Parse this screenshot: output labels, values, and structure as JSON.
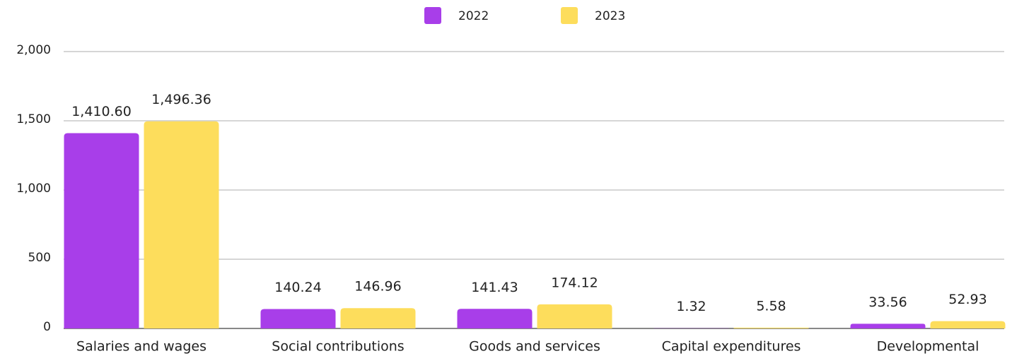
{
  "chart_data": {
    "type": "bar",
    "categories": [
      "Salaries and wages",
      "Social contributions",
      "Goods and services",
      "Capital expenditures",
      "Developmental"
    ],
    "series": [
      {
        "name": "2022",
        "color": "#a83ee9",
        "values": [
          1410.6,
          140.24,
          141.43,
          1.32,
          33.56
        ],
        "value_labels": [
          "1,410.60",
          "140.24",
          "141.43",
          "1.32",
          "33.56"
        ]
      },
      {
        "name": "2023",
        "color": "#fddd5c",
        "values": [
          1496.36,
          146.96,
          174.12,
          5.58,
          52.93
        ],
        "value_labels": [
          "1,496.36",
          "146.96",
          "174.12",
          "5.58",
          "52.93"
        ]
      }
    ],
    "ylim": [
      0,
      2000
    ],
    "yticks": [
      0,
      500,
      {
        "value": 1000,
        "label": "1,000"
      },
      {
        "value": 1500,
        "label": "1,500"
      },
      {
        "value": 2000,
        "label": "2,000"
      }
    ],
    "grid": true,
    "legend": "top"
  }
}
